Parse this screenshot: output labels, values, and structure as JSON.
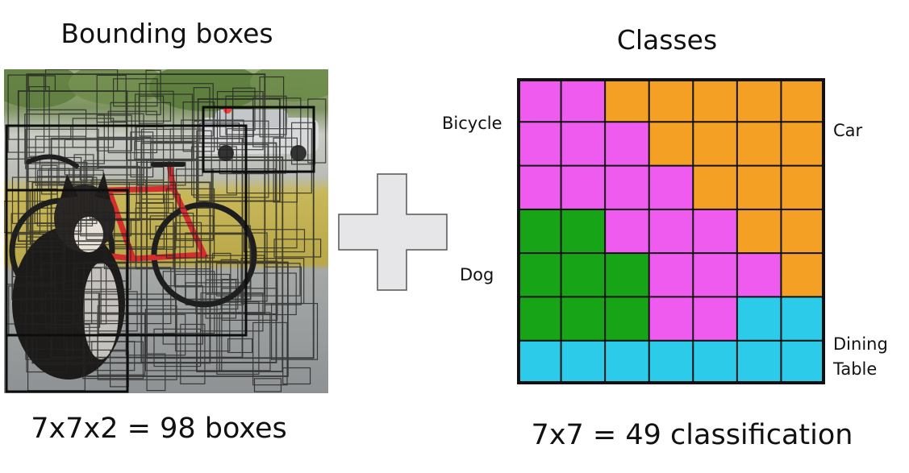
{
  "left": {
    "title": "Bounding boxes",
    "caption": "7x7x2 = 98 boxes"
  },
  "right": {
    "title": "Classes",
    "caption": "7x7 = 49 classification",
    "labels": {
      "bicycle": "Bicycle",
      "car": "Car",
      "dog": "Dog",
      "dining_table_line1": "Dining",
      "dining_table_line2": "Table"
    }
  },
  "grid": {
    "rows": 7,
    "cols": 7,
    "cells": [
      [
        "bicycle",
        "bicycle",
        "car",
        "car",
        "car",
        "car",
        "car"
      ],
      [
        "bicycle",
        "bicycle",
        "bicycle",
        "car",
        "car",
        "car",
        "car"
      ],
      [
        "bicycle",
        "bicycle",
        "bicycle",
        "bicycle",
        "car",
        "car",
        "car"
      ],
      [
        "dog",
        "dog",
        "bicycle",
        "bicycle",
        "bicycle",
        "car",
        "car"
      ],
      [
        "dog",
        "dog",
        "dog",
        "bicycle",
        "bicycle",
        "bicycle",
        "car"
      ],
      [
        "dog",
        "dog",
        "dog",
        "bicycle",
        "bicycle",
        "dining_table",
        "dining_table"
      ],
      [
        "dining_table",
        "dining_table",
        "dining_table",
        "dining_table",
        "dining_table",
        "dining_table",
        "dining_table"
      ]
    ]
  },
  "colors": {
    "bicycle": "#ee5bee",
    "car": "#f4a024",
    "dog": "#17a417",
    "dining_table": "#2ccbea",
    "grid_line": "#111111",
    "plus_fill": "#e6e6e8",
    "plus_stroke": "#555555"
  }
}
